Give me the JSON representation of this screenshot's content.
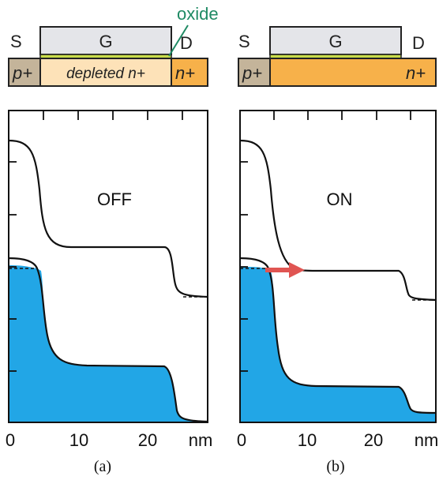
{
  "colors": {
    "gate_fill": "#e4e5e9",
    "oxide_fill": "#c8dc4a",
    "oxide_label": "#1f8a64",
    "p_region": "#c4b49a",
    "depleted_region": "#fde2b8",
    "n_region": "#f7b14a",
    "electron_fill": "#22a6e6",
    "arrow": "#e05552"
  },
  "panels": [
    {
      "source_label": "S",
      "gate_label": "G",
      "drain_label": "D",
      "oxide_label": "oxide",
      "p_label": "p+",
      "mid_label": "depleted n+",
      "n_label": "n+",
      "state_label": "OFF",
      "x_ticks": [
        "0",
        "10",
        "20"
      ],
      "x_unit": "nm",
      "caption": "(a)"
    },
    {
      "source_label": "S",
      "gate_label": "G",
      "drain_label": "D",
      "p_label": "p+",
      "n_label": "n+",
      "state_label": "ON",
      "x_ticks": [
        "0",
        "10",
        "20"
      ],
      "x_unit": "nm",
      "caption": "(b)"
    }
  ]
}
